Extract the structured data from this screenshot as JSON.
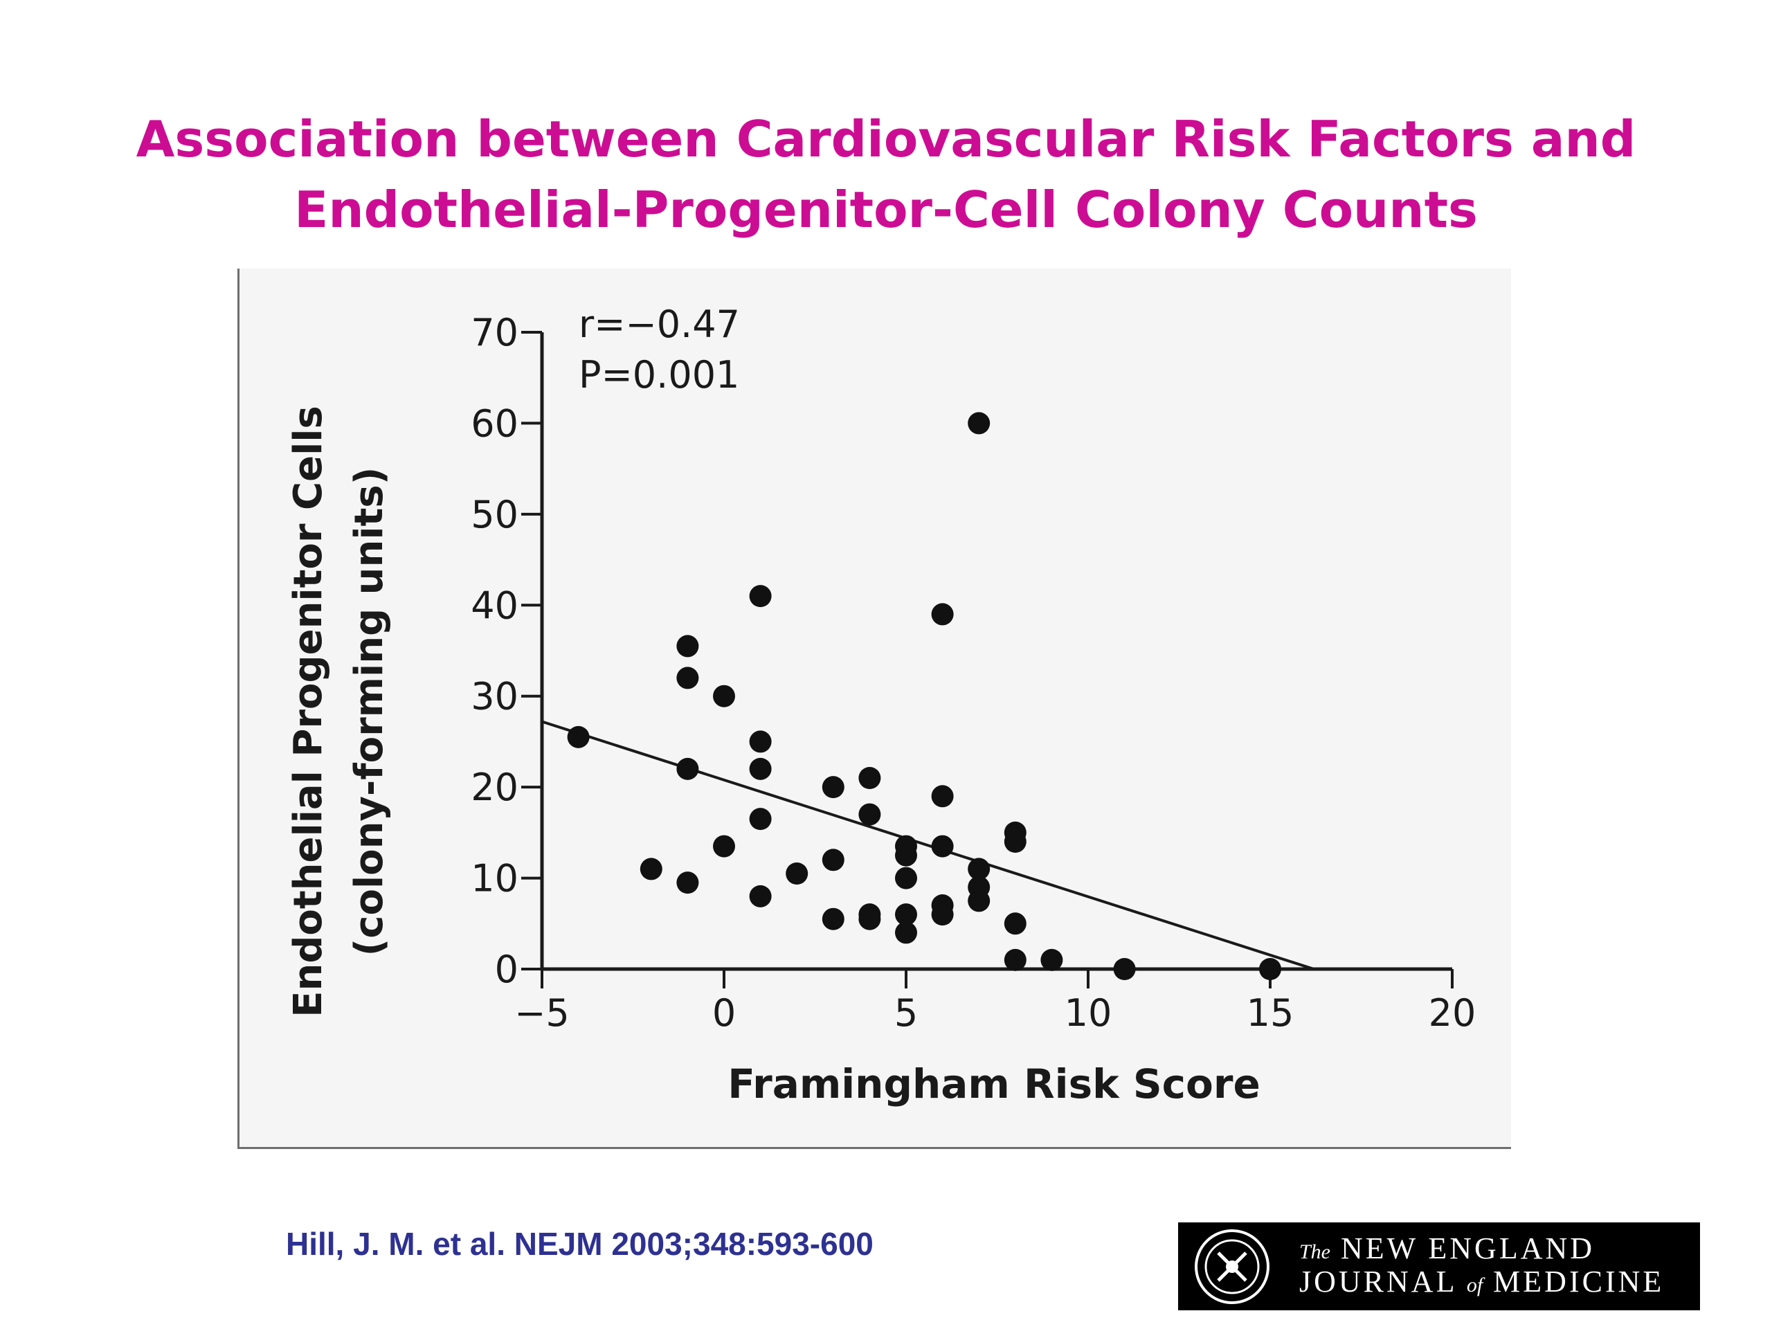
{
  "slide": {
    "title_line1": "Association between Cardiovascular Risk Factors and",
    "title_line2": "Endothelial-Progenitor-Cell Colony Counts",
    "citation": "Hill, J. M. et al. NEJM 2003;348:593-600",
    "title_color": "#cc0d93",
    "citation_color": "#2e3192"
  },
  "logo": {
    "line1_prefix": "The",
    "line1_main": "NEW ENGLAND",
    "line2_a": "JOURNAL",
    "line2_of": "of",
    "line2_b": "MEDICINE",
    "seal_text": "MEDICINE • NEW ENGLAND • 1812"
  },
  "chart_data": {
    "type": "scatter",
    "title": "",
    "xlabel": "Framingham Risk Score",
    "ylabel_line1": "Endothelial Progenitor Cells",
    "ylabel_line2": "(colony-forming units)",
    "xlim": [
      -5,
      20
    ],
    "ylim": [
      0,
      70
    ],
    "xticks": [
      -5,
      0,
      5,
      10,
      15,
      20
    ],
    "xtick_labels": [
      "−5",
      "0",
      "5",
      "10",
      "15",
      "20"
    ],
    "yticks": [
      0,
      10,
      20,
      30,
      40,
      50,
      60,
      70
    ],
    "ytick_labels": [
      "0",
      "10",
      "20",
      "30",
      "40",
      "50",
      "60",
      "70"
    ],
    "grid": false,
    "annotations": [
      "r=−0.47",
      "P=0.001"
    ],
    "point_color": "#111111",
    "points": [
      {
        "x": -4,
        "y": 25.5
      },
      {
        "x": -2,
        "y": 11
      },
      {
        "x": -1,
        "y": 35.5
      },
      {
        "x": -1,
        "y": 32
      },
      {
        "x": -1,
        "y": 22
      },
      {
        "x": -1,
        "y": 9.5
      },
      {
        "x": 0,
        "y": 30
      },
      {
        "x": 0,
        "y": 13.5
      },
      {
        "x": 1,
        "y": 41
      },
      {
        "x": 1,
        "y": 25
      },
      {
        "x": 1,
        "y": 22
      },
      {
        "x": 1,
        "y": 16.5
      },
      {
        "x": 1,
        "y": 8
      },
      {
        "x": 2,
        "y": 10.5
      },
      {
        "x": 3,
        "y": 20
      },
      {
        "x": 3,
        "y": 12
      },
      {
        "x": 3,
        "y": 5.5
      },
      {
        "x": 4,
        "y": 21
      },
      {
        "x": 4,
        "y": 17
      },
      {
        "x": 4,
        "y": 6
      },
      {
        "x": 4,
        "y": 5.5
      },
      {
        "x": 5,
        "y": 13.5
      },
      {
        "x": 5,
        "y": 12.5
      },
      {
        "x": 5,
        "y": 10
      },
      {
        "x": 5,
        "y": 6
      },
      {
        "x": 5,
        "y": 4
      },
      {
        "x": 6,
        "y": 39
      },
      {
        "x": 6,
        "y": 19
      },
      {
        "x": 6,
        "y": 13.5
      },
      {
        "x": 6,
        "y": 7
      },
      {
        "x": 6,
        "y": 6
      },
      {
        "x": 7,
        "y": 60
      },
      {
        "x": 7,
        "y": 11
      },
      {
        "x": 7,
        "y": 9
      },
      {
        "x": 7,
        "y": 7.5
      },
      {
        "x": 8,
        "y": 15
      },
      {
        "x": 8,
        "y": 14
      },
      {
        "x": 8,
        "y": 5
      },
      {
        "x": 8,
        "y": 1
      },
      {
        "x": 9,
        "y": 1
      },
      {
        "x": 11,
        "y": 0
      },
      {
        "x": 15,
        "y": 0
      }
    ],
    "regression_line": {
      "x1": -5,
      "y1": 27.2,
      "x2": 16.2,
      "y2": 0
    }
  }
}
